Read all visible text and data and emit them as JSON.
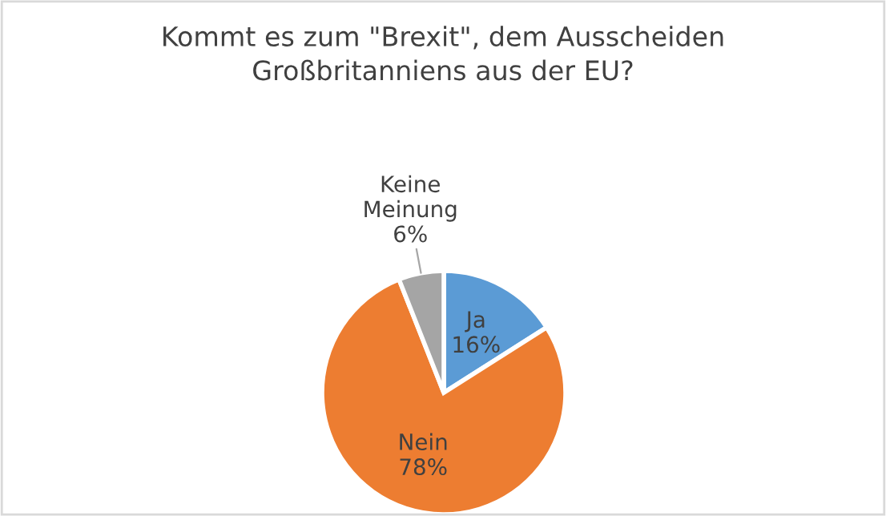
{
  "chart_data": {
    "type": "pie",
    "title": "Kommt es zum \"Brexit\", dem Ausscheiden\nGroßbritanniens aus der EU?",
    "categories": [
      "Ja",
      "Nein",
      "Keine\nMeinung"
    ],
    "values": [
      16,
      78,
      6
    ],
    "colors": [
      "#5b9bd5",
      "#ed7d31",
      "#a5a5a5"
    ],
    "value_labels": [
      "16%",
      "78%",
      "6%"
    ],
    "legend": false
  }
}
